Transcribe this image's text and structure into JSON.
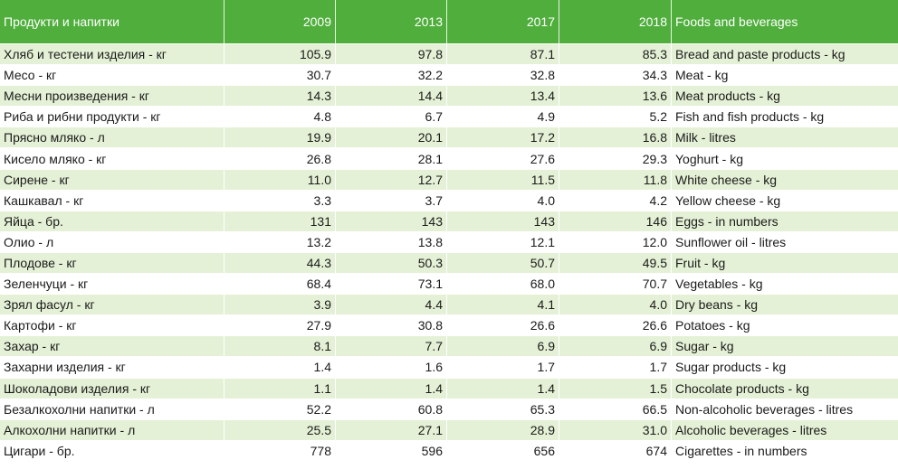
{
  "header": {
    "bg_label": "Продукти и напитки",
    "years": [
      "2009",
      "2013",
      "2017",
      "2018"
    ],
    "en_label": "Foods and beverages"
  },
  "colors": {
    "header_bg": "#4fae3c",
    "stripe": "#e5f1d6"
  },
  "rows": [
    {
      "bg": "Хляб и тестени изделия - кг",
      "v": [
        "105.9",
        "97.8",
        "87.1",
        "85.3"
      ],
      "en": "Bread and paste products - kg"
    },
    {
      "bg": "Месо - кг",
      "v": [
        "30.7",
        "32.2",
        "32.8",
        "34.3"
      ],
      "en": "Meat - kg"
    },
    {
      "bg": "Месни произведения  - кг",
      "v": [
        "14.3",
        "14.4",
        "13.4",
        "13.6"
      ],
      "en": "Meat products - kg"
    },
    {
      "bg": "Риба и рибни продукти - кг",
      "v": [
        "4.8",
        "6.7",
        "4.9",
        "5.2"
      ],
      "en": "Fish and fish products - kg"
    },
    {
      "bg": "Прясно мляко - л",
      "v": [
        "19.9",
        "20.1",
        "17.2",
        "16.8"
      ],
      "en": "Milk - litres"
    },
    {
      "bg": "Кисело мляко - кг",
      "v": [
        "26.8",
        "28.1",
        "27.6",
        "29.3"
      ],
      "en": "Yoghurt - kg"
    },
    {
      "bg": "Сирене - кг",
      "v": [
        "11.0",
        "12.7",
        "11.5",
        "11.8"
      ],
      "en": "White cheese - kg"
    },
    {
      "bg": "Кашкавал - кг",
      "v": [
        "3.3",
        "3.7",
        "4.0",
        "4.2"
      ],
      "en": "Yellow cheese - kg"
    },
    {
      "bg": "Яйца - бр.",
      "v": [
        "131",
        "143",
        "143",
        "146"
      ],
      "en": "Eggs - in numbers"
    },
    {
      "bg": "Олио - л",
      "v": [
        "13.2",
        "13.8",
        "12.1",
        "12.0"
      ],
      "en": "Sunflower oil - litres"
    },
    {
      "bg": "Плодове - кг",
      "v": [
        "44.3",
        "50.3",
        "50.7",
        "49.5"
      ],
      "en": "Fruit - kg"
    },
    {
      "bg": "Зеленчуци - кг",
      "v": [
        "68.4",
        "73.1",
        "68.0",
        "70.7"
      ],
      "en": "Vegetables - kg"
    },
    {
      "bg": "Зрял фасул - кг",
      "v": [
        "3.9",
        "4.4",
        "4.1",
        "4.0"
      ],
      "en": "Dry beans - kg"
    },
    {
      "bg": "Картофи - кг",
      "v": [
        "27.9",
        "30.8",
        "26.6",
        "26.6"
      ],
      "en": "Potatoes - kg"
    },
    {
      "bg": "Захар - кг",
      "v": [
        "8.1",
        "7.7",
        "6.9",
        "6.9"
      ],
      "en": "Sugar - kg"
    },
    {
      "bg": "Захарни изделия - кг",
      "v": [
        "1.4",
        "1.6",
        "1.7",
        "1.7"
      ],
      "en": "Sugar products - kg"
    },
    {
      "bg": "Шоколадови изделия - кг",
      "v": [
        "1.1",
        "1.4",
        "1.4",
        "1.5"
      ],
      "en": "Chocolate products - kg"
    },
    {
      "bg": "Безалкохолни напитки - л",
      "v": [
        "52.2",
        "60.8",
        "65.3",
        "66.5"
      ],
      "en": "Non-alcoholic beverages - litres"
    },
    {
      "bg": "Алкохолни напитки - л",
      "v": [
        "25.5",
        "27.1",
        "28.9",
        "31.0"
      ],
      "en": "Alcoholic beverages - litres"
    },
    {
      "bg": "Цигари - бр.",
      "v": [
        "778",
        "596",
        "656",
        "674"
      ],
      "en": "Cigarettes - in numbers"
    }
  ]
}
